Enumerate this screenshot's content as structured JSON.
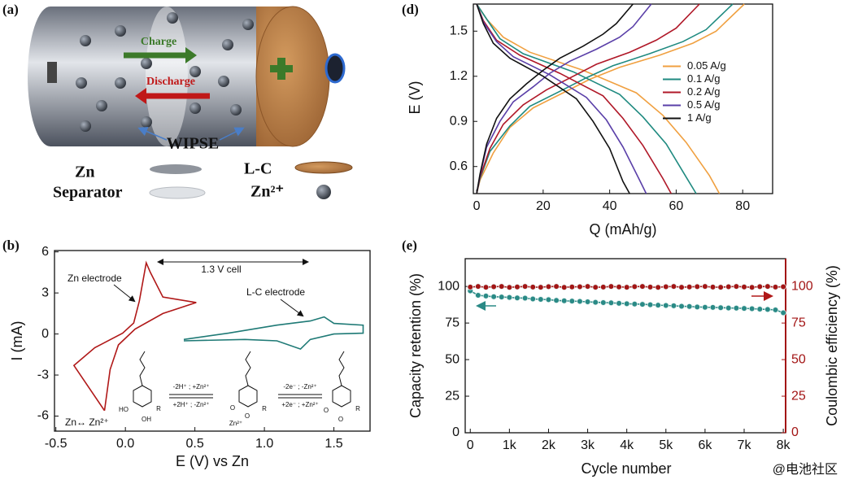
{
  "panel_labels": [
    "(a)",
    "(b)",
    "(d)",
    "(e)"
  ],
  "diagram": {
    "charge": "Charge",
    "discharge": "Discharge",
    "label": "WIPSE",
    "legend": [
      "Zn",
      "Separator",
      "L-C",
      "Zn²⁺"
    ]
  },
  "watermark": "@电池社区",
  "chart_data": [
    {
      "type": "line",
      "xlabel": "E (V) vs Zn",
      "ylabel": "I (mA)",
      "xlim": [
        -0.51,
        1.76
      ],
      "ylim": [
        -7.1,
        6.1
      ],
      "xticks": [
        -0.5,
        {
          "value": 0,
          "label": "0.0"
        },
        0.5,
        {
          "value": 1,
          "label": "1.0"
        },
        1.5
      ],
      "yticks": [
        -6,
        -3,
        0,
        3,
        6
      ],
      "annotations": [
        "Zn electrode",
        "L-C electrode",
        "1.3 V cell",
        "Zn↔ Zn²⁺",
        "-2H⁺ ; +Zn²⁺",
        "+2H⁺ ; -Zn²⁺",
        "-2e⁻ ; -Zn²⁺",
        "+2e⁻ ; +Zn²⁺",
        "HO",
        "OH",
        "R",
        "O",
        "O",
        "R",
        "Zn²⁺",
        "O",
        "O",
        "R"
      ],
      "series": [
        {
          "color": "#b01818",
          "x": [
            -0.15,
            -0.37,
            -0.22,
            -0.02,
            0.06,
            0.1,
            0.15,
            0.18,
            0.27,
            0.51,
            0.27,
            0.07,
            -0.05,
            -0.11,
            -0.15
          ],
          "values": [
            -5.6,
            -2.3,
            -1.0,
            0.06,
            0.8,
            2.4,
            5.2,
            4.5,
            2.7,
            2.3,
            1.5,
            0.36,
            -0.8,
            -2.6,
            -5.6
          ]
        },
        {
          "color": "#1f7a76",
          "x": [
            0.42,
            0.74,
            1.09,
            1.33,
            1.43,
            1.5,
            1.71,
            1.71,
            1.5,
            1.33,
            1.26,
            1.09,
            0.86,
            0.42
          ],
          "values": [
            -0.4,
            0.06,
            0.65,
            0.95,
            1.25,
            0.77,
            0.65,
            0.06,
            0.0,
            -0.4,
            -1.1,
            -0.5,
            -0.4,
            -0.5
          ]
        }
      ]
    },
    {
      "type": "line",
      "xlabel": "Q (mAh/g)",
      "ylabel": "E (V)",
      "legend": "center right",
      "xlim": [
        -1,
        89
      ],
      "ylim": [
        0.42,
        1.68
      ],
      "xticks": [
        0,
        20,
        40,
        60,
        80
      ],
      "yticks": [
        0.6,
        0.9,
        1.2,
        1.5
      ],
      "series": [
        {
          "name": "0.05 A/g",
          "color": "#f0a040",
          "x": [
            0,
            3,
            8,
            16,
            32,
            48,
            56,
            63,
            70,
            73,
            null,
            0,
            1,
            5,
            10,
            17,
            26,
            34,
            43,
            55,
            65,
            72,
            80.5
          ],
          "values": [
            1.68,
            1.58,
            1.46,
            1.36,
            1.24,
            1.09,
            0.94,
            0.76,
            0.54,
            0.42,
            null,
            0.42,
            0.51,
            0.69,
            0.86,
            0.99,
            1.09,
            1.18,
            1.26,
            1.34,
            1.42,
            1.5,
            1.68
          ]
        },
        {
          "name": "0.1 A/g",
          "color": "#1f8a80",
          "x": [
            0,
            3,
            7,
            14,
            29,
            43,
            50,
            57,
            63,
            66,
            null,
            0,
            1,
            4,
            10,
            16,
            25,
            33,
            41,
            52,
            62,
            69,
            77
          ],
          "values": [
            1.68,
            1.58,
            1.45,
            1.35,
            1.23,
            1.08,
            0.93,
            0.75,
            0.53,
            0.42,
            null,
            0.42,
            0.52,
            0.7,
            0.87,
            1.0,
            1.1,
            1.19,
            1.27,
            1.35,
            1.43,
            1.51,
            1.68
          ]
        },
        {
          "name": "0.2 A/g",
          "color": "#b01828",
          "x": [
            0,
            2,
            6,
            13,
            25,
            38,
            44,
            50,
            56,
            58.5,
            null,
            0,
            1,
            4,
            8,
            14,
            21,
            29,
            36,
            46,
            54,
            60,
            67
          ],
          "values": [
            1.68,
            1.57,
            1.44,
            1.34,
            1.22,
            1.07,
            0.92,
            0.74,
            0.52,
            0.42,
            null,
            0.42,
            0.53,
            0.72,
            0.88,
            1.01,
            1.11,
            1.2,
            1.28,
            1.36,
            1.44,
            1.52,
            1.68
          ]
        },
        {
          "name": "0.5 A/g",
          "color": "#5a3fa8",
          "x": [
            0,
            2,
            6,
            11,
            22,
            33,
            39,
            44,
            49,
            51,
            null,
            0,
            1,
            3,
            7,
            11,
            17,
            22,
            28,
            36,
            43,
            47,
            52.5
          ],
          "values": [
            1.68,
            1.56,
            1.43,
            1.33,
            1.21,
            1.06,
            0.91,
            0.73,
            0.51,
            0.42,
            null,
            0.42,
            0.54,
            0.73,
            0.9,
            1.03,
            1.13,
            1.22,
            1.3,
            1.38,
            1.46,
            1.53,
            1.68
          ]
        },
        {
          "name": "1 A/g",
          "color": "#111111",
          "x": [
            0,
            2,
            5,
            10,
            20,
            30,
            35,
            40,
            44,
            46,
            null,
            0,
            1,
            3,
            6,
            10,
            15,
            20,
            25,
            32,
            38,
            42,
            47
          ],
          "values": [
            1.68,
            1.55,
            1.42,
            1.32,
            1.2,
            1.05,
            0.9,
            0.72,
            0.5,
            0.42,
            null,
            0.42,
            0.55,
            0.75,
            0.92,
            1.05,
            1.15,
            1.24,
            1.32,
            1.4,
            1.48,
            1.55,
            1.68
          ]
        }
      ]
    },
    {
      "type": "line",
      "xlabel": "Cycle number",
      "ylabel": "Capacity retention (%)",
      "y2label": "Coulombic efficiency (%)",
      "xlim": [
        -130,
        8060
      ],
      "ylim": [
        0,
        119
      ],
      "y2lim": [
        0,
        119
      ],
      "xticks": [
        0,
        {
          "value": 1000,
          "label": "1k"
        },
        {
          "value": 2000,
          "label": "2k"
        },
        {
          "value": 3000,
          "label": "3k"
        },
        {
          "value": 4000,
          "label": "4k"
        },
        {
          "value": 5000,
          "label": "5k"
        },
        {
          "value": 6000,
          "label": "6k"
        },
        {
          "value": 7000,
          "label": "7k"
        },
        {
          "value": 8000,
          "label": "8k"
        }
      ],
      "yticks": [
        0,
        25,
        50,
        75,
        100
      ],
      "y2ticks": [
        0,
        25,
        50,
        75,
        100
      ],
      "y2color": "#a31515",
      "markers": true,
      "x": [
        0,
        200,
        400,
        600,
        800,
        1000,
        1200,
        1400,
        1600,
        1800,
        2000,
        2200,
        2400,
        2600,
        2800,
        3000,
        3200,
        3400,
        3600,
        3800,
        4000,
        4200,
        4400,
        4600,
        4800,
        5000,
        5200,
        5400,
        5600,
        5800,
        6000,
        6200,
        6400,
        6600,
        6800,
        7000,
        7200,
        7400,
        7600,
        7800,
        8000
      ],
      "series": [
        {
          "color": "#2a8a86",
          "values": [
            97,
            94,
            93.5,
            93,
            92.8,
            92.5,
            92.2,
            92,
            91.5,
            91.2,
            91,
            90.5,
            90.2,
            90,
            89.8,
            89.5,
            89.2,
            89,
            88.8,
            88.5,
            88.2,
            88,
            87.8,
            87.5,
            87.2,
            87,
            86.8,
            86.5,
            86.3,
            86,
            85.8,
            85.7,
            85.5,
            85.3,
            85.2,
            85,
            84.8,
            84.5,
            84.3,
            84,
            82
          ]
        },
        {
          "color": "#a31515",
          "axis": "y2",
          "values": [
            99.6,
            100,
            99.5,
            99.8,
            100,
            99.4,
            99.7,
            100,
            99.6,
            99.5,
            99.9,
            100,
            99.4,
            99.7,
            99.8,
            100,
            99.5,
            99.6,
            100,
            99.7,
            99.5,
            99.9,
            100,
            99.6,
            99.4,
            99.8,
            100,
            99.5,
            99.7,
            99.9,
            100,
            99.6,
            99.5,
            99.8,
            100,
            99.7,
            99.4,
            99.9,
            100,
            99.6,
            99.8
          ]
        }
      ]
    }
  ]
}
